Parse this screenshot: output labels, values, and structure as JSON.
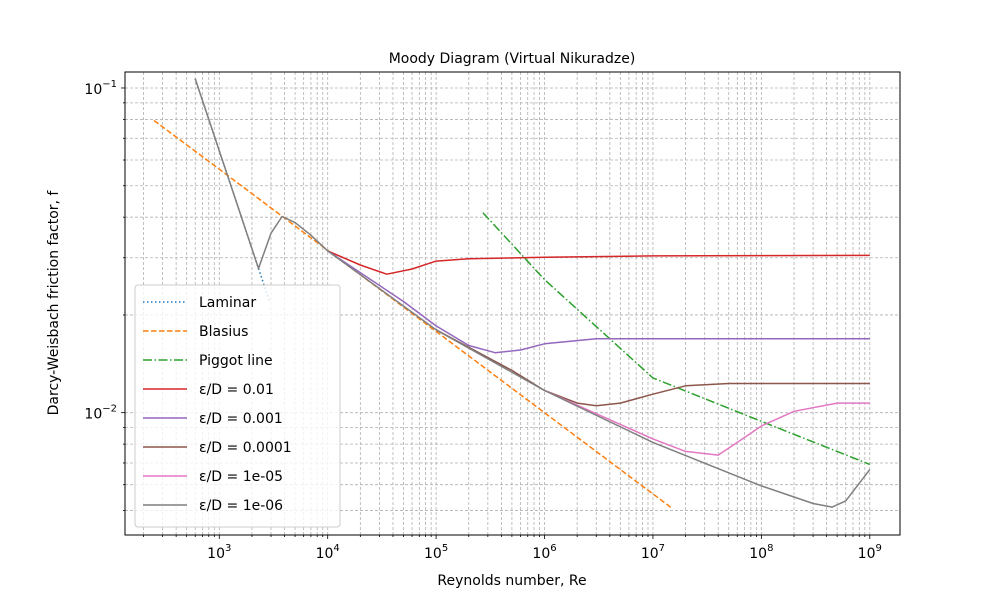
{
  "chart_data": {
    "type": "line",
    "title": "Moody Diagram (Virtual Nikuradze)",
    "xlabel": "Reynolds number, Re",
    "ylabel": "Darcy-Weisbach friction factor, f",
    "xscale": "log",
    "yscale": "log",
    "xlim": [
      135,
      1900000000
    ],
    "ylim": [
      0.0042,
      0.112
    ],
    "grid": true,
    "grid_which": "both",
    "legend_position": "lower-left",
    "x_ticks": [
      {
        "value": 1000,
        "base": "10",
        "exp": "3"
      },
      {
        "value": 10000,
        "base": "10",
        "exp": "4"
      },
      {
        "value": 100000,
        "base": "10",
        "exp": "5"
      },
      {
        "value": 1000000,
        "base": "10",
        "exp": "6"
      },
      {
        "value": 10000000,
        "base": "10",
        "exp": "7"
      },
      {
        "value": 100000000,
        "base": "10",
        "exp": "8"
      },
      {
        "value": 1000000000,
        "base": "10",
        "exp": "9"
      }
    ],
    "y_ticks": [
      {
        "value": 0.1,
        "base": "10",
        "exp": "−1"
      },
      {
        "value": 0.01,
        "base": "10",
        "exp": "−2"
      }
    ],
    "series": [
      {
        "name": "Laminar",
        "color": "#1f77b4",
        "style": "dotted",
        "x": [
          600,
          1000,
          1500,
          2000,
          2500,
          2900
        ],
        "y": [
          0.1067,
          0.064,
          0.0427,
          0.032,
          0.0256,
          0.0221
        ]
      },
      {
        "name": "Blasius",
        "color": "#ff7f0e",
        "style": "dashed",
        "x": [
          250,
          1000,
          10000,
          100000,
          1000000,
          10000000,
          15000000
        ],
        "y": [
          0.0794,
          0.0562,
          0.0316,
          0.0178,
          0.01,
          0.00562,
          0.00508
        ]
      },
      {
        "name": "Piggot line",
        "color": "#2ca02c",
        "style": "dashdot",
        "x": [
          270000,
          1000000,
          10000000,
          100000000,
          1000000000
        ],
        "y": [
          0.0413,
          0.0257,
          0.0128,
          0.0094,
          0.00693
        ]
      },
      {
        "name": "ε/D = 0.01",
        "color": "#d62728",
        "style": "solid",
        "x": [
          10000,
          20000,
          35000,
          60000,
          100000,
          200000,
          1000000,
          10000000,
          1000000000
        ],
        "y": [
          0.0315,
          0.0285,
          0.0267,
          0.0277,
          0.0293,
          0.0298,
          0.0301,
          0.0304,
          0.0305
        ]
      },
      {
        "name": "ε/D = 0.001",
        "color": "#9467bd",
        "style": "solid",
        "x": [
          10000,
          50000,
          100000,
          200000,
          350000,
          600000,
          1000000,
          3000000,
          10000000,
          1000000000
        ],
        "y": [
          0.0315,
          0.022,
          0.0185,
          0.0161,
          0.0153,
          0.0156,
          0.0163,
          0.0169,
          0.0169,
          0.0169
        ]
      },
      {
        "name": "ε/D = 0.0001",
        "color": "#8c564b",
        "style": "solid",
        "x": [
          100000,
          500000,
          1000000,
          2000000,
          3000000,
          5000000,
          10000000,
          20000000,
          50000000,
          1000000000
        ],
        "y": [
          0.018,
          0.0135,
          0.0117,
          0.0107,
          0.0105,
          0.0107,
          0.0114,
          0.0121,
          0.0123,
          0.0123
        ]
      },
      {
        "name": "ε/D = 1e-05",
        "color": "#e377c2",
        "style": "solid",
        "x": [
          1000000,
          5000000,
          10000000,
          20000000,
          40000000,
          60000000,
          100000000,
          200000000,
          500000000,
          1000000000
        ],
        "y": [
          0.0117,
          0.0092,
          0.0083,
          0.0076,
          0.0074,
          0.0081,
          0.0091,
          0.0101,
          0.0107,
          0.0107
        ]
      },
      {
        "name": "ε/D = 1e-06",
        "color": "#7f7f7f",
        "style": "solid",
        "x": [
          600,
          800,
          1000,
          1500,
          2300,
          3000,
          3800,
          5000,
          7000,
          10000,
          100000,
          1000000,
          10000000,
          100000000,
          300000000,
          450000000,
          600000000,
          1000000000
        ],
        "y": [
          0.1067,
          0.08,
          0.064,
          0.0427,
          0.0278,
          0.0357,
          0.0402,
          0.0385,
          0.0352,
          0.0315,
          0.018,
          0.0117,
          0.0081,
          0.00595,
          0.00525,
          0.00512,
          0.00535,
          0.00668
        ]
      }
    ]
  }
}
